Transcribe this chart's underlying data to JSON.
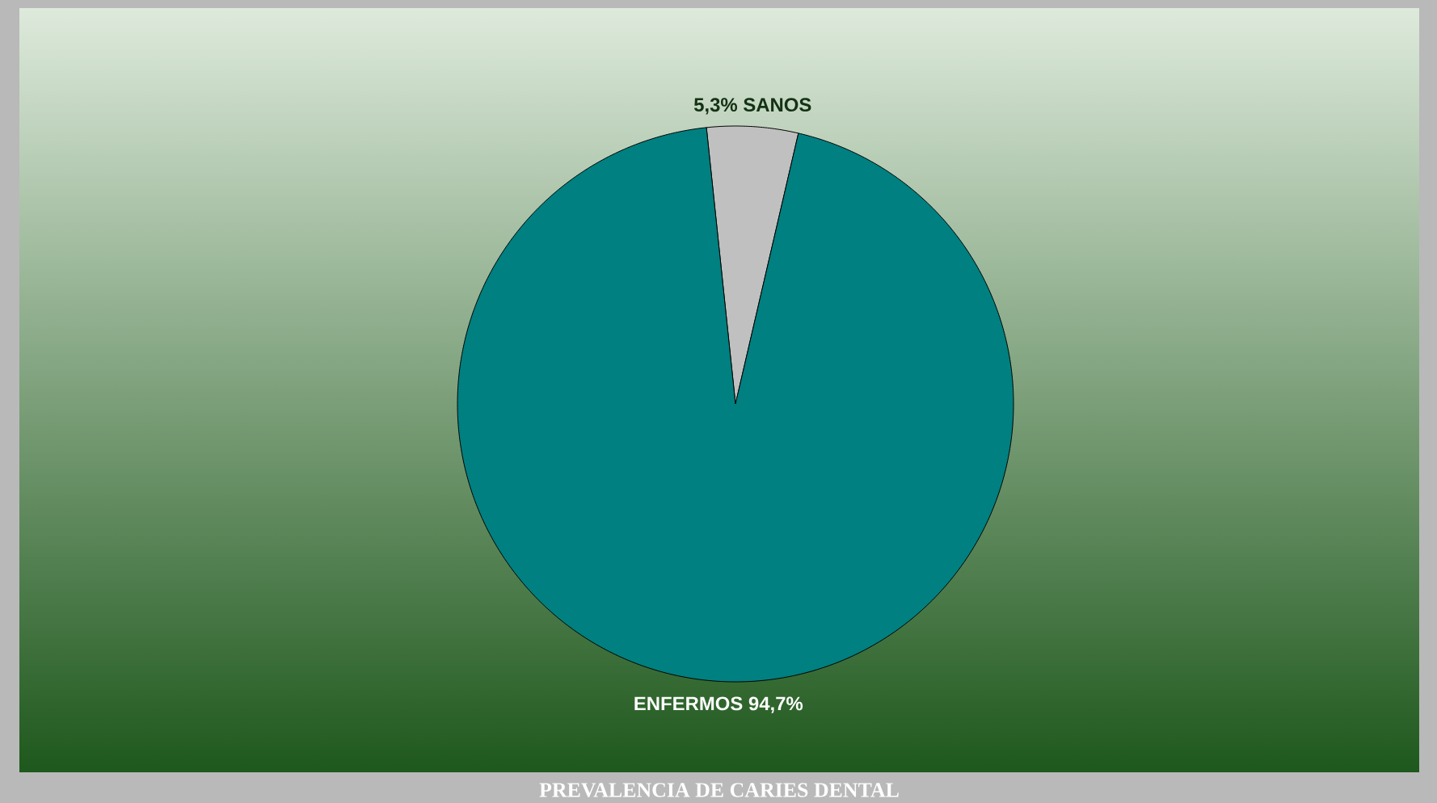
{
  "chart_data": {
    "type": "pie",
    "title": "PREVALENCIA DE CARIES DENTAL",
    "categories": [
      "SANOS",
      "ENFERMOS"
    ],
    "values": [
      5.3,
      94.7
    ],
    "colors": [
      "#c0c0c0",
      "#008080"
    ],
    "value_labels": [
      "5,3%",
      "94,7%"
    ]
  }
}
